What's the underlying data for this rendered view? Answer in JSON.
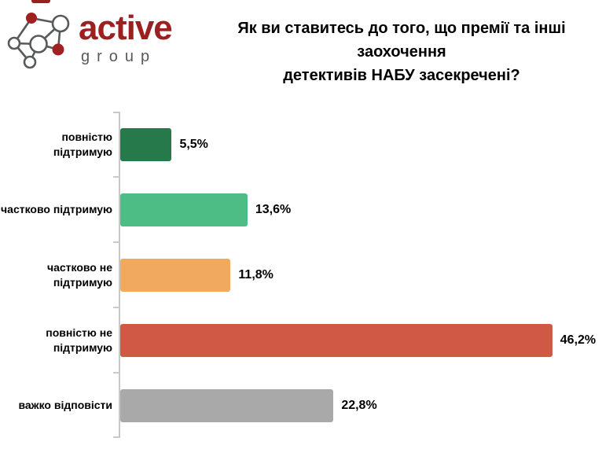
{
  "branding": {
    "name": "active",
    "subname": "group",
    "brand_color": "#9b2121",
    "subname_color": "#595959",
    "logo_icon": "network-nodes-icon"
  },
  "chart_data": {
    "type": "bar",
    "orientation": "horizontal",
    "title": "Як ви ставитесь до того, що премії та інші заохочення\nдетективів НАБУ засекречені?",
    "categories": [
      "повністю підтримую",
      "частково підтримую",
      "частково не\nпідтримую",
      "повністю не\nпідтримую",
      "важко відповісти"
    ],
    "values": [
      5.5,
      13.6,
      11.8,
      46.2,
      22.8
    ],
    "value_labels": [
      "5,5%",
      "13,6%",
      "11,8%",
      "46,2%",
      "22,8%"
    ],
    "colors": [
      "#26794a",
      "#4ebc85",
      "#f0a95f",
      "#d05946",
      "#a9a9a9"
    ],
    "xlabel": "",
    "ylabel": "",
    "xlim": [
      0,
      50
    ],
    "grid": false,
    "legend": false,
    "data_labels": true,
    "axis_color": "#c9c9c9"
  }
}
